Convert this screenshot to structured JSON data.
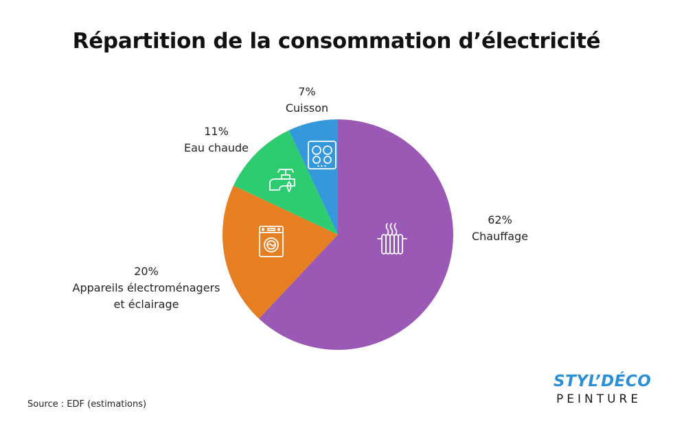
{
  "chart_data": {
    "type": "pie",
    "title": "Répartition de la consommation d’électricité",
    "slices": [
      {
        "percent_label": "62%",
        "name": "Chauffage",
        "value": 62,
        "color": "#9b59b6",
        "icon": "radiator-icon"
      },
      {
        "percent_label": "20%",
        "name": "Appareils électroménagers",
        "name_line2": "et éclairage",
        "value": 20,
        "color": "#e67e22",
        "icon": "washing-machine-icon"
      },
      {
        "percent_label": "11%",
        "name": "Eau chaude",
        "value": 11,
        "color": "#2ecc71",
        "icon": "water-tap-icon"
      },
      {
        "percent_label": "7%",
        "name": "Cuisson",
        "value": 7,
        "color": "#3498db",
        "icon": "cooktop-icon"
      }
    ],
    "start_angle": "top",
    "direction": "clockwise"
  },
  "source": "Source : EDF (estimations)",
  "logo": {
    "line1": "STYL’DÉCO",
    "line2": "PEINTURE",
    "color": "#2a8fd6"
  }
}
